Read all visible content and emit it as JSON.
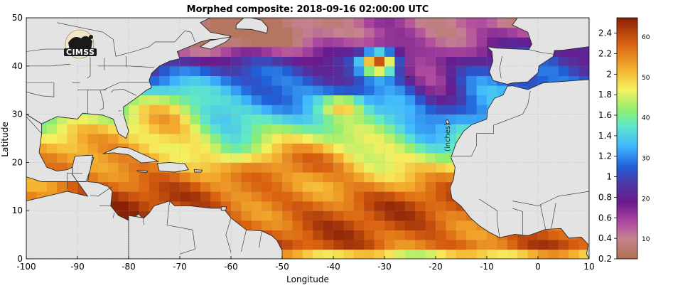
{
  "title": "Morphed composite: 2018-09-16 02:00:00 UTC",
  "logo_text": "CIMSS",
  "colorbar_unit": "(inches)",
  "colors": {
    "land": "#e3e3e3",
    "border": "#2a2a2a",
    "accent_orange": "#e8801e"
  },
  "chart_data": {
    "type": "heatmap",
    "title": "Morphed composite: 2018-09-16 02:00:00 UTC",
    "xlabel": "Longitude",
    "ylabel": "Latitude",
    "xlim": [
      -100,
      10
    ],
    "ylim": [
      0,
      50
    ],
    "xticks": [
      -100,
      -90,
      -80,
      -70,
      -60,
      -50,
      -40,
      -30,
      -20,
      -10,
      0,
      10
    ],
    "yticks": [
      0,
      10,
      20,
      30,
      40,
      50
    ],
    "grid": true,
    "colorbar": {
      "inches_ticks": [
        0.2,
        0.4,
        0.6,
        0.8,
        1,
        1.2,
        1.4,
        1.6,
        1.8,
        2,
        2.2,
        2.4
      ],
      "inches_range": [
        0.2,
        2.55
      ],
      "mm_ticks": [
        10,
        20,
        30,
        40,
        50,
        60
      ],
      "unit": "(inches)",
      "stops": [
        {
          "v": 0.2,
          "c": "#b07050"
        },
        {
          "v": 0.4,
          "c": "#c4838f"
        },
        {
          "v": 0.55,
          "c": "#b04aa0"
        },
        {
          "v": 0.75,
          "c": "#6a1a8c"
        },
        {
          "v": 0.95,
          "c": "#4a3aa8"
        },
        {
          "v": 1.1,
          "c": "#2060d8"
        },
        {
          "v": 1.3,
          "c": "#40b8ff"
        },
        {
          "v": 1.5,
          "c": "#60e8c8"
        },
        {
          "v": 1.65,
          "c": "#90ee70"
        },
        {
          "v": 1.85,
          "c": "#f5f060"
        },
        {
          "v": 2.05,
          "c": "#f5b030"
        },
        {
          "v": 2.3,
          "c": "#d86010"
        },
        {
          "v": 2.55,
          "c": "#8a2008"
        }
      ]
    },
    "field_features": [
      {
        "name": "gulf-caribbean-moist",
        "lon": -80,
        "lat": 20,
        "value": 2.2
      },
      {
        "name": "itcz-band",
        "lon": -40,
        "lat": 8,
        "value": 2.15
      },
      {
        "name": "atlantic-dry-north",
        "lon": -55,
        "lat": 43,
        "value": 0.8
      },
      {
        "name": "helene-core",
        "lon": -31,
        "lat": 41,
        "value": 2.2
      },
      {
        "name": "central-atlantic-mid",
        "lon": -45,
        "lat": 28,
        "value": 1.45
      },
      {
        "name": "eastern-atlantic-dry",
        "lon": -20,
        "lat": 33,
        "value": 0.9
      }
    ]
  }
}
